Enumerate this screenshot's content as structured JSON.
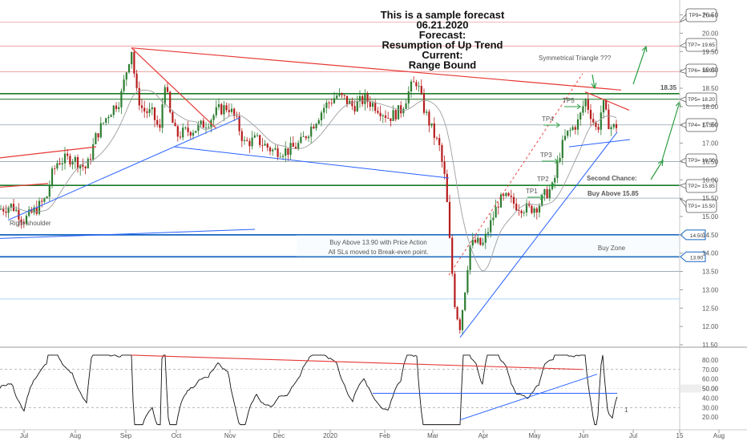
{
  "title": {
    "lines": [
      "This is a sample forecast",
      "06.21.2020",
      "Forecast:",
      "Resumption of Up Trend",
      "Current:",
      "Range Bound"
    ]
  },
  "chart_data": [
    {
      "type": "candlestick",
      "title": "",
      "price_axis": {
        "ylim": [
          11.5,
          20.6
        ],
        "ticks": [
          "20.50",
          "20.00",
          "19.50",
          "19.00",
          "18.50",
          "18.00",
          "17.50",
          "17.00",
          "16.50",
          "16.00",
          "15.50",
          "15.00",
          "14.50",
          "14.00",
          "13.50",
          "13.00",
          "12.50",
          "12.00",
          "11.50"
        ]
      },
      "time_axis": {
        "ticks": [
          "Jul",
          "Aug",
          "Sep",
          "Oct",
          "Nov",
          "Dec",
          "2020",
          "Feb",
          "Mar",
          "Apr",
          "May",
          "Jun",
          "Jul",
          "15",
          "Aug"
        ]
      },
      "series": [
        {
          "name": "",
          "ohlc_points": [
            [
              "Jul",
              14.9
            ],
            [
              "Aug",
              16.3
            ],
            [
              "Aug",
              16.6
            ],
            [
              "Sep",
              19.6
            ],
            [
              "Sep",
              18.0
            ],
            [
              "Oct",
              17.6
            ],
            [
              "Oct",
              17.3
            ],
            [
              "Nov",
              17.5
            ],
            [
              "Nov",
              16.9
            ],
            [
              "Dec",
              16.8
            ],
            [
              "Dec",
              17.4
            ],
            [
              "2020",
              18.4
            ],
            [
              "2020",
              18.0
            ],
            [
              "Feb",
              17.8
            ],
            [
              "Feb",
              18.7
            ],
            [
              "Mar",
              17.2
            ],
            [
              "Mar",
              12.0
            ],
            [
              "Apr",
              14.3
            ],
            [
              "Apr",
              15.5
            ],
            [
              "May",
              15.4
            ],
            [
              "May",
              16.6
            ],
            [
              "Jun",
              18.2
            ],
            [
              "Jun",
              17.5
            ]
          ]
        }
      ],
      "levels": [
        {
          "label": "18.35",
          "value": 18.35
        },
        {
          "label": "TP9= Free",
          "value": 20.3
        },
        {
          "label": "TP7= 19.65",
          "value": 19.65
        },
        {
          "label": "TP6= 18.95",
          "value": 18.95
        },
        {
          "label": "TP5= 18.20",
          "value": 18.2
        },
        {
          "label": "TP4= 17.50",
          "value": 17.5
        },
        {
          "label": "TP3= 16.50",
          "value": 16.5
        },
        {
          "label": "TP2= 15.85",
          "value": 15.85
        },
        {
          "label": "TP1= 15.50",
          "value": 15.5
        },
        {
          "label": "14.50",
          "value": 14.5
        },
        {
          "label": "13.90",
          "value": 13.9
        }
      ],
      "annotations": {
        "right_shoulder": "Right shoulder",
        "triangle": "Symmetrical Triangle ???",
        "buy_above_line1": "Buy Above 13.90 with Price Action",
        "buy_above_line2": "All SLs moved to Break-even point.",
        "buy_zone": "Buy Zone",
        "second_chance": "Second Chance:",
        "buy_above_1585": "Buy Above 15.85",
        "tp_markers": [
          "TP1",
          "TP2",
          "TP3",
          "TP4",
          "TP5"
        ]
      }
    },
    {
      "type": "line",
      "title": "",
      "ylim": [
        10,
        90
      ],
      "ticks": [
        "80.00",
        "70.00",
        "60.00",
        "50.00",
        "40.00",
        "30.00",
        "20.00"
      ],
      "current_value": "50.00",
      "annotation": "1"
    }
  ],
  "colors": {
    "up_candle": "#2e7d32",
    "down_candle": "#b71c1c",
    "green_level": "#1b7b2a",
    "red_trend": "#e53935",
    "blue_trend": "#2962ff",
    "buy_zone_text": "#1565c0"
  }
}
